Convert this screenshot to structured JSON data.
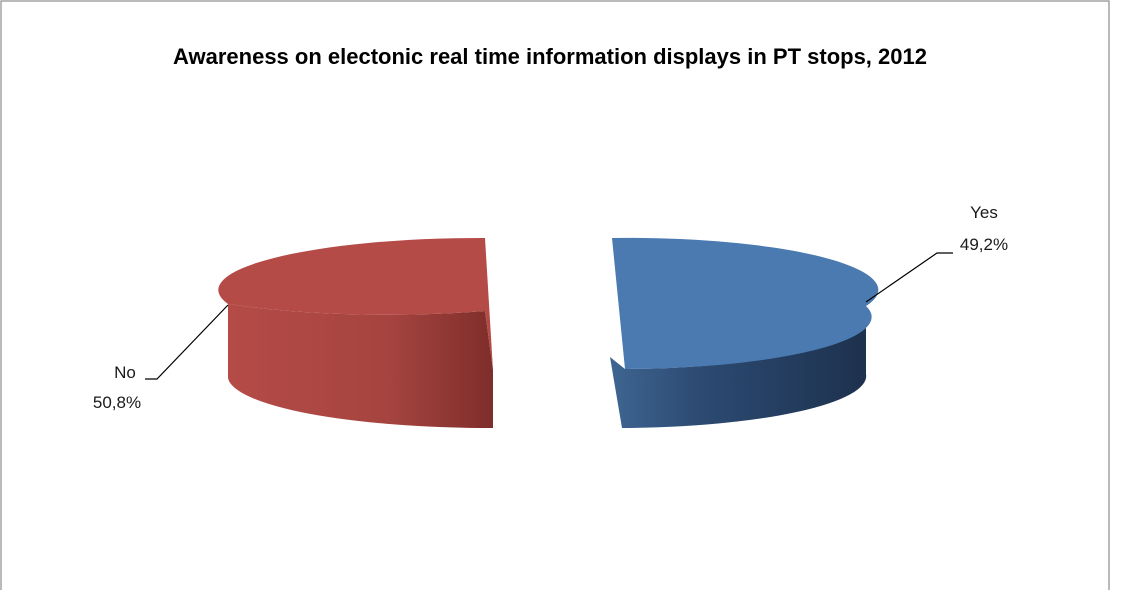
{
  "chart_data": {
    "type": "pie",
    "title": "Awareness on electonic real time information displays in PT stops, 2012",
    "slices": [
      {
        "label": "Yes",
        "value": 49.2,
        "display": "49,2%",
        "color": "#4a7ab0",
        "side_color": "#27456b"
      },
      {
        "label": "No",
        "value": 50.8,
        "display": "50,8%",
        "color": "#b44b47",
        "side_color": "#8f3632"
      }
    ],
    "legend": "none",
    "style": "3d-exploded"
  }
}
